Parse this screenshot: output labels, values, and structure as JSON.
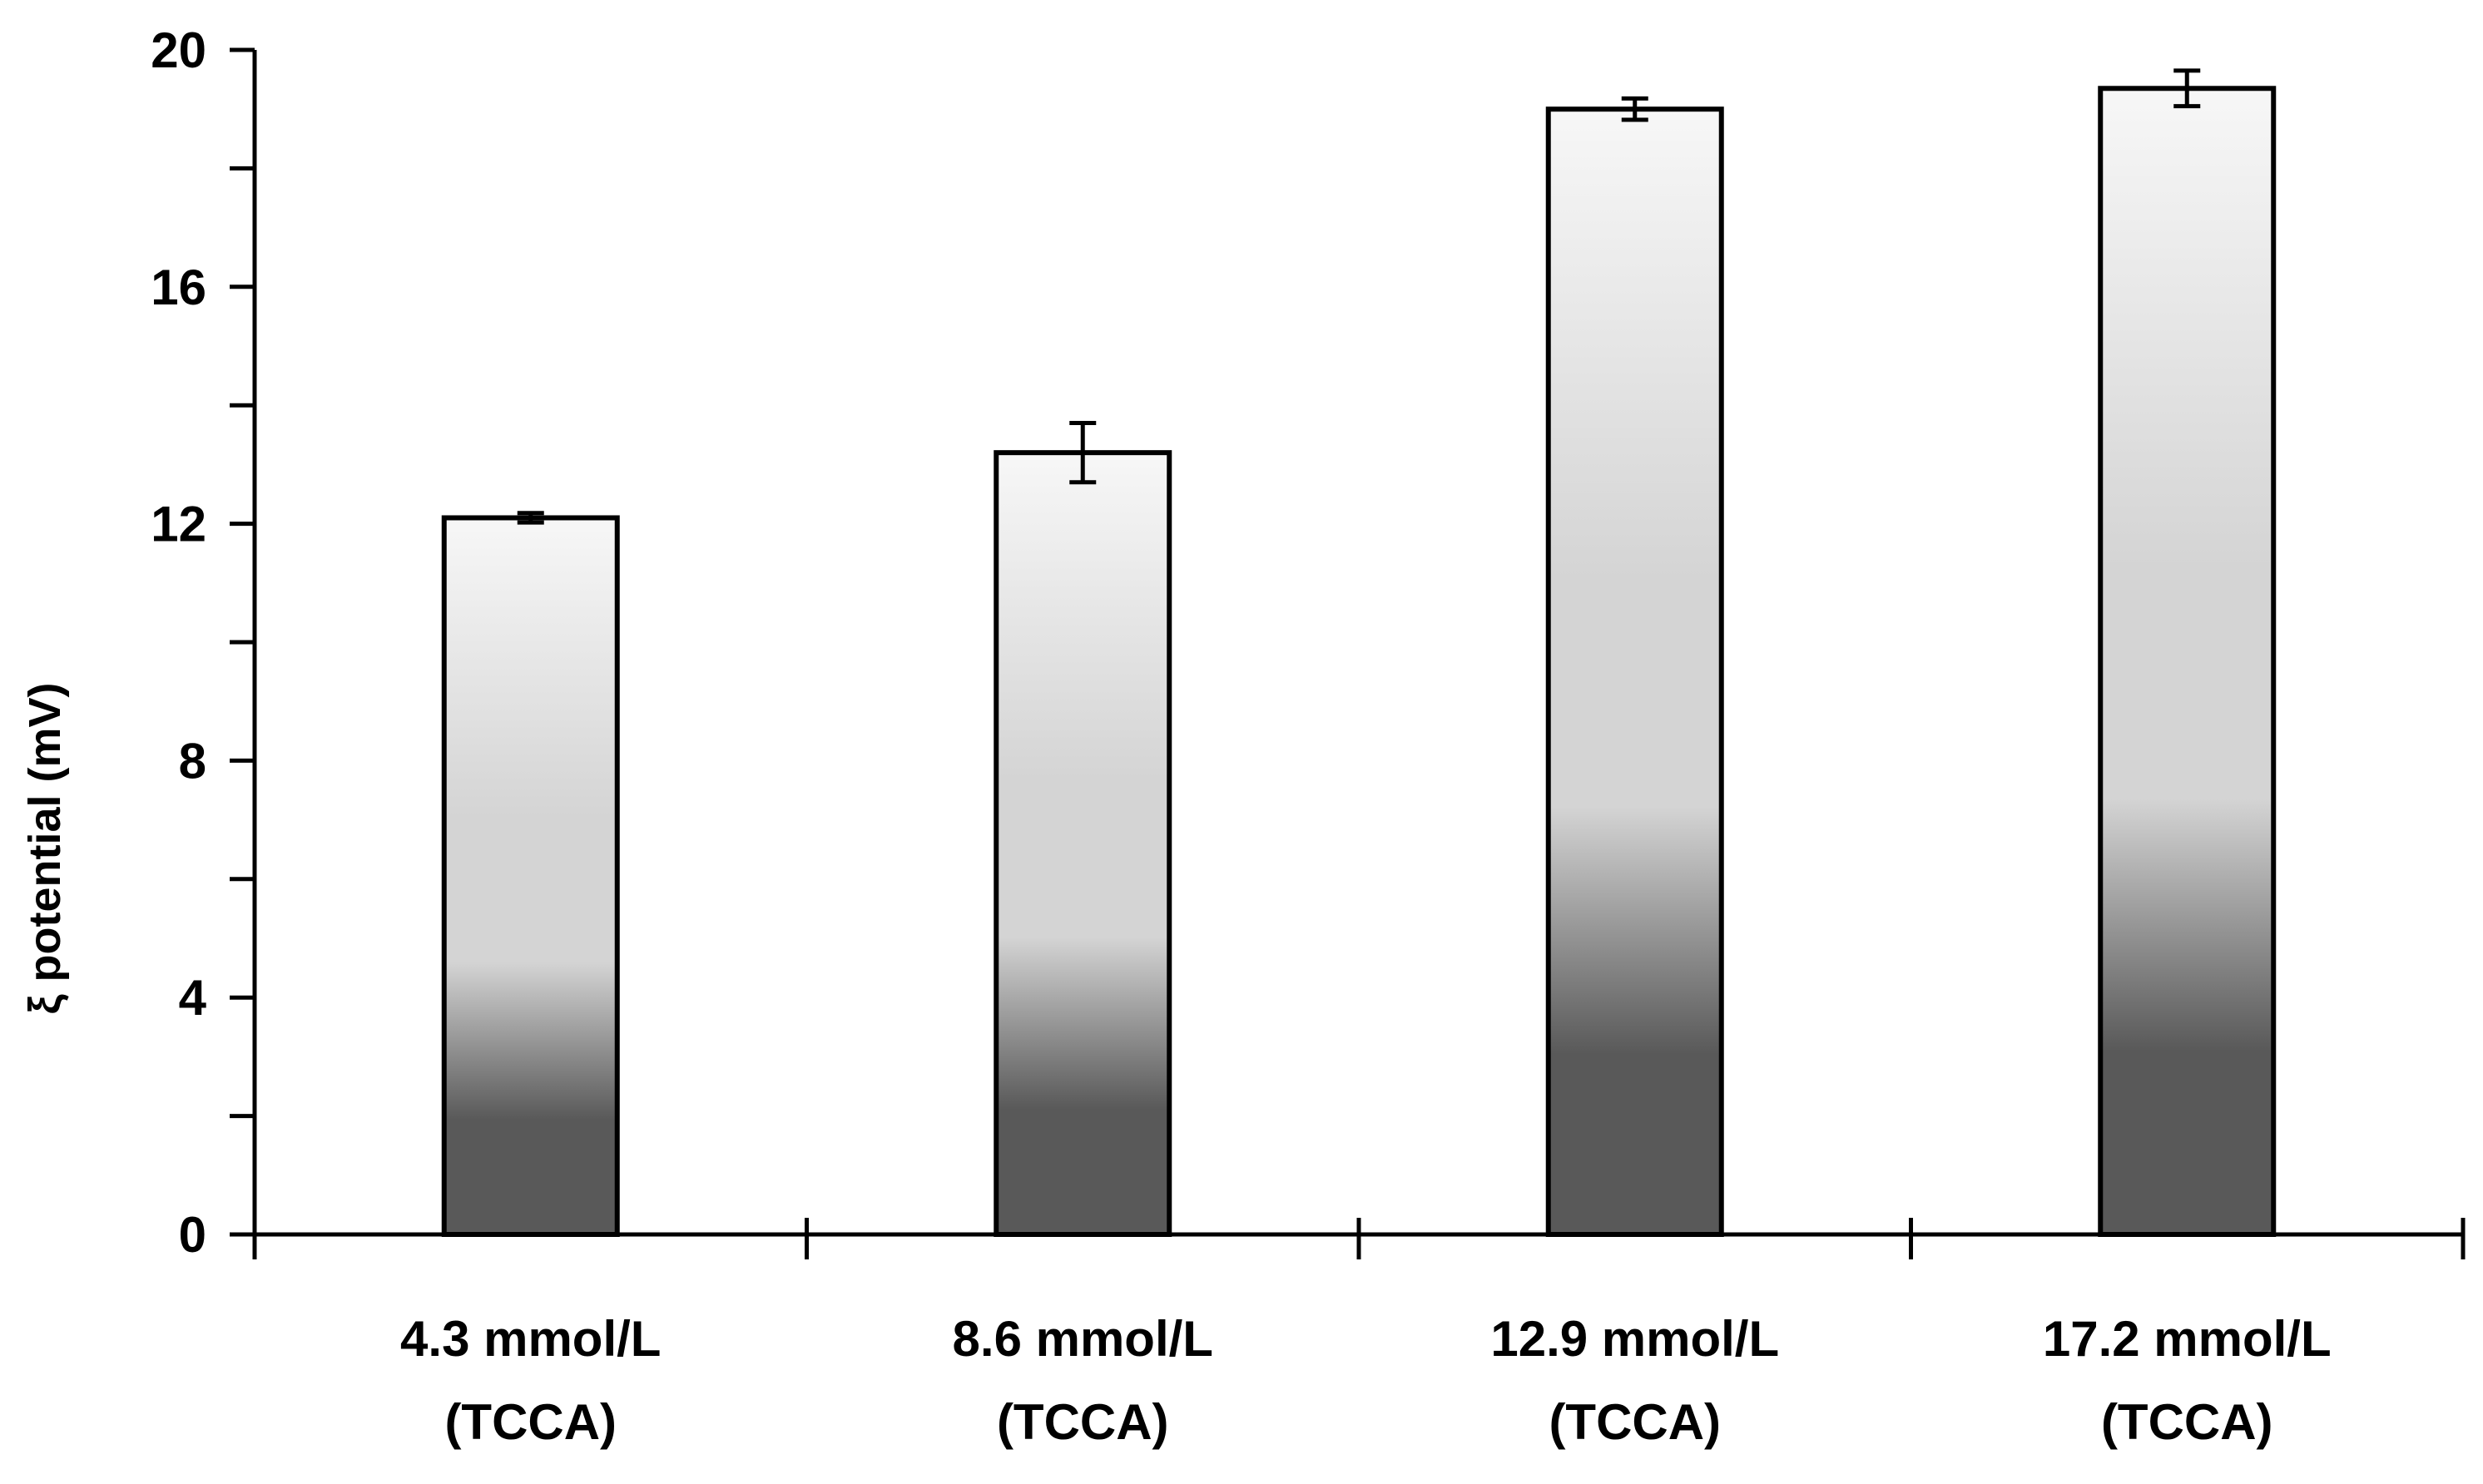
{
  "chart_data": {
    "type": "bar",
    "title": "",
    "xlabel": "",
    "ylabel": "ξ potential (mV)",
    "ylim": [
      0,
      20
    ],
    "yticks": [
      0,
      4,
      8,
      12,
      16,
      20
    ],
    "minor_ytick_step": 2,
    "grid": false,
    "categories": [
      {
        "line1": "4.3 mmol/L",
        "line2": "(TCCA)"
      },
      {
        "line1": "8.6 mmol/L",
        "line2": "(TCCA)"
      },
      {
        "line1": "12.9 mmol/L",
        "line2": "(TCCA)"
      },
      {
        "line1": "17.2 mmol/L",
        "line2": "(TCCA)"
      }
    ],
    "values": [
      12.1,
      13.2,
      19.0,
      19.35
    ],
    "errors": [
      0.08,
      0.5,
      0.18,
      0.3
    ],
    "colors": {
      "gradient_top": "#f7f7f7",
      "gradient_mid": "#d4d4d4",
      "gradient_low": "#a0a0a0",
      "gradient_bottom": "#595959",
      "outline": "#000000"
    }
  }
}
